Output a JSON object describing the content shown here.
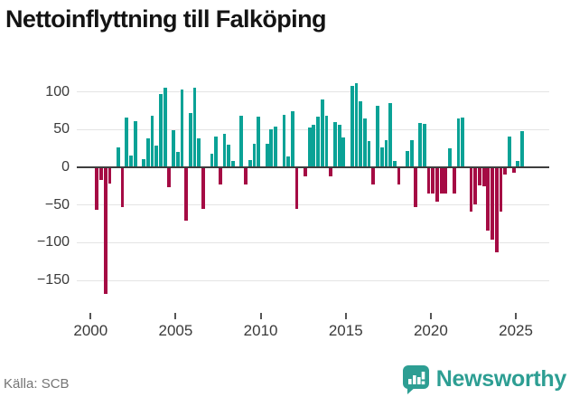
{
  "title": "Nettoinflyttning till Falköping",
  "footer": {
    "source": "Källa: SCB",
    "brand": "Newsworthy"
  },
  "colors": {
    "positive": "#0aa296",
    "negative": "#a50b44",
    "grid": "#e4e4e4",
    "zero_axis": "#3d3d3d",
    "text": "#3a3a3a",
    "muted_text": "#757575",
    "brand_teal": "#2d9e93"
  },
  "icons": {
    "brand_logo": "newsworthy-speech-bubble-bar-chart-icon"
  },
  "chart_data": {
    "type": "bar",
    "title": "Nettoinflyttning till Falköping",
    "frequency": "quarterly",
    "start": "2000-Q1",
    "end": "2025-Q2",
    "values": [
      0,
      -55,
      -15,
      -167,
      -20,
      0,
      26,
      -52,
      66,
      16,
      61,
      0,
      11,
      38,
      68,
      29,
      97,
      106,
      -25,
      49,
      20,
      103,
      -70,
      72,
      106,
      38,
      -54,
      0,
      18,
      41,
      -21,
      45,
      30,
      8,
      0,
      69,
      -21,
      10,
      31,
      67,
      0,
      31,
      51,
      54,
      0,
      70,
      15,
      75,
      -54,
      0,
      -11,
      53,
      57,
      67,
      90,
      69,
      -11,
      60,
      57,
      40,
      0,
      108,
      112,
      88,
      65,
      35,
      -21,
      82,
      27,
      36,
      85,
      9,
      -22,
      0,
      22,
      36,
      -52,
      59,
      58,
      -34,
      -34,
      -44,
      -33,
      -34,
      25,
      -34,
      65,
      66,
      0,
      -57,
      -48,
      -23,
      -24,
      -83,
      -95,
      -111,
      -57,
      -8,
      41,
      -6,
      9,
      48
    ],
    "y_ticks": [
      100,
      50,
      0,
      -50,
      -100,
      -150
    ],
    "x_ticks": [
      2000,
      2005,
      2010,
      2015,
      2020,
      2025
    ],
    "ylim": [
      -186,
      120
    ],
    "grid": true,
    "legend": false,
    "positive_color": "#0aa296",
    "negative_color": "#a50b44"
  }
}
